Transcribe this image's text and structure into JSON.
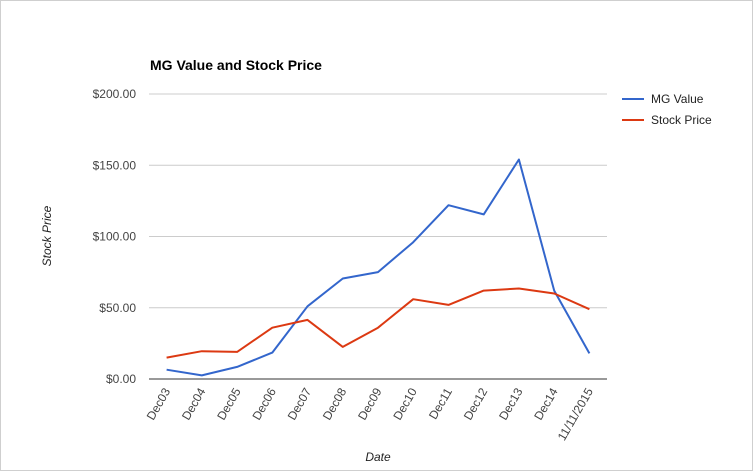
{
  "chart_data": {
    "type": "line",
    "title": "MG Value and Stock Price",
    "xlabel": "Date",
    "ylabel": "Stock Price",
    "categories": [
      "Dec03",
      "Dec04",
      "Dec05",
      "Dec06",
      "Dec07",
      "Dec08",
      "Dec09",
      "Dec10",
      "Dec11",
      "Dec12",
      "Dec13",
      "Dec14",
      "11/11/2015"
    ],
    "ylim": [
      0,
      200
    ],
    "yticks": [
      0,
      50,
      100,
      150,
      200
    ],
    "ytick_labels": [
      "$0.00",
      "$50.00",
      "$100.00",
      "$150.00",
      "$200.00"
    ],
    "grid": true,
    "legend": "right",
    "series": [
      {
        "name": "MG Value",
        "color": "#3366cc",
        "values": [
          6.5,
          2.5,
          8.5,
          18.5,
          51,
          70.5,
          75,
          96,
          122,
          115.5,
          154,
          62,
          18
        ]
      },
      {
        "name": "Stock Price",
        "color": "#dc3912",
        "values": [
          15,
          19.5,
          19,
          36,
          41.5,
          22.5,
          36,
          56,
          52,
          62,
          63.5,
          60,
          49
        ]
      }
    ]
  }
}
